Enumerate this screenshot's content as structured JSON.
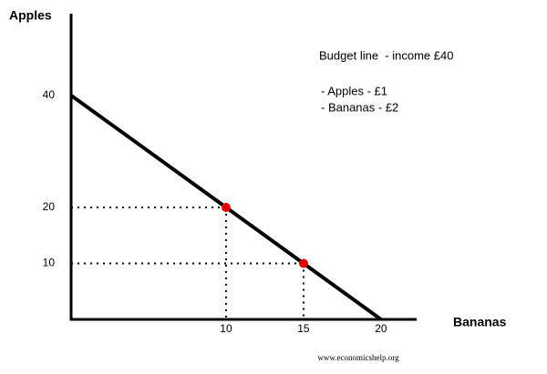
{
  "chart_data": {
    "type": "line",
    "y_label": "Apples",
    "x_label": "Bananas",
    "annotations": [
      "Budget line  - income £40",
      "- Apples - £1",
      "- Bananas - £2"
    ],
    "source": "www.economicshelp.org",
    "xlim": [
      0,
      22.3
    ],
    "ylim": [
      0,
      54.6
    ],
    "xticks": [
      10,
      15,
      20
    ],
    "yticks": [
      10,
      20,
      40
    ],
    "series": [
      {
        "type": "line",
        "color": "#000000",
        "x": [
          0,
          20
        ],
        "values": [
          40,
          0
        ]
      },
      {
        "type": "scatter",
        "color": "#e00000",
        "x": [
          10,
          15
        ],
        "values": [
          20,
          10
        ]
      }
    ]
  }
}
